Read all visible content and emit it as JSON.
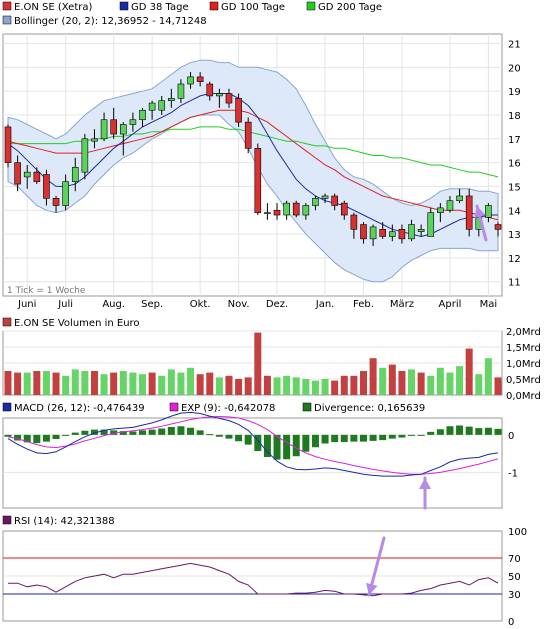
{
  "colors": {
    "candle_up": "#5bd35b",
    "candle_down": "#d93030",
    "bollinger_fill": "#dde8f8",
    "bollinger_line": "#8aa6cc",
    "gd38": "#1a2aa8",
    "gd100": "#e02020",
    "gd200": "#22cc22",
    "macd": "#1a2aa8",
    "exp": "#dd22dd",
    "divergence": "#1e7a1e",
    "rsi": "#661a66",
    "rsi70": "#d81818",
    "rsi30": "#2222aa",
    "arrow": "#b68ae6",
    "volume_up": "#66d466",
    "volume_down": "#c24040"
  },
  "legend_price": [
    {
      "label": "E.ON SE (Xetra)",
      "color": "#d93030"
    },
    {
      "label": "GD 38 Tage",
      "color": "#1a2aa8"
    },
    {
      "label": "GD 100 Tage",
      "color": "#e02020"
    },
    {
      "label": "GD 200 Tage",
      "color": "#22cc22"
    }
  ],
  "legend_bollinger": {
    "label": "Bollinger (20, 2): 12,36952 - 14,71248",
    "color": "#8aa6cc"
  },
  "tick_note": "1 Tick = 1 Woche",
  "legend_volume": {
    "label": "E.ON SE Volumen in Euro",
    "color": "#c24040"
  },
  "legend_macd": [
    {
      "label": "MACD (26, 12): -0,476439",
      "color": "#1a2aa8"
    },
    {
      "label": "EXP (9): -0,642078",
      "color": "#dd22dd"
    },
    {
      "label": "Divergence: 0,165639",
      "color": "#1e7a1e"
    }
  ],
  "legend_rsi": {
    "label": "RSI (14): 42,321388",
    "color": "#661a66"
  },
  "chart_data": [
    {
      "type": "candlestick",
      "title": "E.ON SE (Xetra)",
      "x_labels": [
        "Juni",
        "Juli",
        "Aug.",
        "Sep.",
        "Okt.",
        "Nov.",
        "Dez.",
        "Jan.",
        "Feb.",
        "März",
        "April",
        "Mai"
      ],
      "x_label_week": [
        2,
        6,
        11,
        15,
        20,
        24,
        28,
        33,
        37,
        41,
        46,
        50
      ],
      "y_ticks": [
        11,
        12,
        13,
        14,
        15,
        16,
        17,
        18,
        19,
        20,
        21
      ],
      "ylim": [
        10.4,
        21.4
      ],
      "candles": [
        {
          "o": 17.5,
          "h": 17.6,
          "l": 15.8,
          "c": 16.0
        },
        {
          "o": 16.0,
          "h": 16.3,
          "l": 14.8,
          "c": 15.1
        },
        {
          "o": 15.4,
          "h": 15.9,
          "l": 14.9,
          "c": 15.6
        },
        {
          "o": 15.6,
          "h": 15.8,
          "l": 15.1,
          "c": 15.2
        },
        {
          "o": 15.5,
          "h": 15.7,
          "l": 14.2,
          "c": 14.5
        },
        {
          "o": 14.5,
          "h": 14.6,
          "l": 13.9,
          "c": 14.2
        },
        {
          "o": 14.2,
          "h": 15.5,
          "l": 14.0,
          "c": 15.2
        },
        {
          "o": 15.2,
          "h": 16.2,
          "l": 14.8,
          "c": 15.8
        },
        {
          "o": 15.6,
          "h": 17.2,
          "l": 15.3,
          "c": 17.0
        },
        {
          "o": 16.9,
          "h": 17.4,
          "l": 16.6,
          "c": 17.0
        },
        {
          "o": 17.0,
          "h": 18.1,
          "l": 16.9,
          "c": 17.8
        },
        {
          "o": 17.8,
          "h": 18.3,
          "l": 17.0,
          "c": 17.2
        },
        {
          "o": 17.2,
          "h": 17.7,
          "l": 16.3,
          "c": 17.6
        },
        {
          "o": 17.6,
          "h": 18.1,
          "l": 17.3,
          "c": 17.8
        },
        {
          "o": 17.8,
          "h": 18.3,
          "l": 17.5,
          "c": 18.2
        },
        {
          "o": 18.2,
          "h": 18.6,
          "l": 17.8,
          "c": 18.5
        },
        {
          "o": 18.2,
          "h": 18.8,
          "l": 18.0,
          "c": 18.6
        },
        {
          "o": 18.6,
          "h": 19.1,
          "l": 18.3,
          "c": 18.7
        },
        {
          "o": 18.7,
          "h": 19.5,
          "l": 18.5,
          "c": 19.3
        },
        {
          "o": 19.3,
          "h": 19.8,
          "l": 19.1,
          "c": 19.6
        },
        {
          "o": 19.6,
          "h": 19.8,
          "l": 19.2,
          "c": 19.4
        },
        {
          "o": 19.3,
          "h": 19.4,
          "l": 18.6,
          "c": 18.8
        },
        {
          "o": 18.8,
          "h": 19.1,
          "l": 18.3,
          "c": 18.9
        },
        {
          "o": 18.9,
          "h": 19.1,
          "l": 18.3,
          "c": 18.5
        },
        {
          "o": 18.7,
          "h": 18.9,
          "l": 17.5,
          "c": 17.7
        },
        {
          "o": 17.7,
          "h": 17.9,
          "l": 16.4,
          "c": 16.6
        },
        {
          "o": 16.6,
          "h": 16.8,
          "l": 13.8,
          "c": 13.9
        },
        {
          "o": 13.9,
          "h": 14.3,
          "l": 13.6,
          "c": 13.9
        },
        {
          "o": 14.0,
          "h": 14.3,
          "l": 13.6,
          "c": 13.8
        },
        {
          "o": 13.8,
          "h": 14.4,
          "l": 13.6,
          "c": 14.3
        },
        {
          "o": 14.3,
          "h": 14.4,
          "l": 13.7,
          "c": 13.8
        },
        {
          "o": 13.8,
          "h": 14.3,
          "l": 13.6,
          "c": 14.2
        },
        {
          "o": 14.2,
          "h": 14.6,
          "l": 14.0,
          "c": 14.5
        },
        {
          "o": 14.5,
          "h": 14.7,
          "l": 14.3,
          "c": 14.6
        },
        {
          "o": 14.6,
          "h": 14.7,
          "l": 14.0,
          "c": 14.2
        },
        {
          "o": 14.3,
          "h": 14.4,
          "l": 13.6,
          "c": 13.8
        },
        {
          "o": 13.8,
          "h": 13.9,
          "l": 12.8,
          "c": 13.2
        },
        {
          "o": 13.4,
          "h": 13.5,
          "l": 12.6,
          "c": 12.8
        },
        {
          "o": 12.8,
          "h": 13.4,
          "l": 12.5,
          "c": 13.3
        },
        {
          "o": 13.2,
          "h": 13.5,
          "l": 12.8,
          "c": 12.9
        },
        {
          "o": 12.9,
          "h": 13.4,
          "l": 12.7,
          "c": 13.1
        },
        {
          "o": 13.2,
          "h": 13.4,
          "l": 12.6,
          "c": 12.8
        },
        {
          "o": 12.8,
          "h": 13.6,
          "l": 12.7,
          "c": 13.4
        },
        {
          "o": 13.1,
          "h": 13.4,
          "l": 12.9,
          "c": 13.2
        },
        {
          "o": 12.9,
          "h": 14.1,
          "l": 12.9,
          "c": 13.9
        },
        {
          "o": 13.9,
          "h": 14.3,
          "l": 13.5,
          "c": 14.1
        },
        {
          "o": 14.0,
          "h": 14.6,
          "l": 13.9,
          "c": 14.4
        },
        {
          "o": 14.4,
          "h": 14.9,
          "l": 14.3,
          "c": 14.6
        },
        {
          "o": 14.6,
          "h": 14.9,
          "l": 12.9,
          "c": 13.2
        },
        {
          "o": 13.2,
          "h": 14.0,
          "l": 12.9,
          "c": 13.7
        },
        {
          "o": 13.7,
          "h": 14.3,
          "l": 13.5,
          "c": 14.2
        },
        {
          "o": 13.4,
          "h": 13.5,
          "l": 12.9,
          "c": 13.2
        }
      ],
      "gd38": [
        16.8,
        16.5,
        16.1,
        15.7,
        15.3,
        15.0,
        15.0,
        15.1,
        15.4,
        15.8,
        16.2,
        16.6,
        16.9,
        17.2,
        17.5,
        17.7,
        17.9,
        18.1,
        18.4,
        18.6,
        18.8,
        18.9,
        18.9,
        18.9,
        18.7,
        18.4,
        17.9,
        17.2,
        16.5,
        15.9,
        15.3,
        14.9,
        14.6,
        14.4,
        14.3,
        14.2,
        14.0,
        13.8,
        13.6,
        13.4,
        13.2,
        13.1,
        13.0,
        12.9,
        13.0,
        13.2,
        13.4,
        13.6,
        13.7,
        13.7,
        13.8,
        13.8
      ],
      "gd100": [
        16.9,
        16.8,
        16.7,
        16.6,
        16.5,
        16.4,
        16.4,
        16.4,
        16.4,
        16.5,
        16.6,
        16.7,
        16.8,
        16.9,
        17.0,
        17.1,
        17.3,
        17.5,
        17.7,
        17.9,
        18.0,
        18.1,
        18.2,
        18.2,
        18.2,
        18.1,
        17.9,
        17.7,
        17.4,
        17.1,
        16.8,
        16.5,
        16.2,
        15.9,
        15.7,
        15.4,
        15.2,
        15.0,
        14.8,
        14.6,
        14.5,
        14.4,
        14.3,
        14.2,
        14.1,
        14.0,
        14.0,
        14.0,
        13.9,
        13.8,
        13.7,
        13.6
      ],
      "gd200": [
        16.8,
        16.8,
        16.8,
        16.8,
        16.8,
        16.8,
        16.8,
        16.9,
        16.9,
        17.0,
        17.0,
        17.1,
        17.1,
        17.2,
        17.2,
        17.3,
        17.3,
        17.4,
        17.4,
        17.4,
        17.5,
        17.5,
        17.5,
        17.4,
        17.4,
        17.3,
        17.2,
        17.1,
        17.0,
        16.9,
        16.9,
        16.8,
        16.7,
        16.7,
        16.6,
        16.6,
        16.5,
        16.4,
        16.3,
        16.3,
        16.2,
        16.2,
        16.1,
        16.0,
        15.9,
        15.9,
        15.8,
        15.7,
        15.6,
        15.6,
        15.5,
        15.4
      ],
      "boll_upper": [
        17.9,
        17.8,
        17.6,
        17.4,
        17.2,
        17.0,
        17.2,
        17.6,
        18.0,
        18.3,
        18.6,
        18.7,
        18.8,
        18.9,
        19.0,
        19.1,
        19.4,
        19.7,
        20.0,
        20.2,
        20.3,
        20.3,
        20.2,
        20.2,
        20.0,
        20.0,
        20.0,
        19.9,
        19.8,
        19.5,
        19.1,
        18.4,
        17.6,
        16.9,
        16.2,
        15.7,
        15.4,
        15.3,
        15.1,
        14.8,
        14.5,
        14.3,
        14.2,
        14.3,
        14.5,
        14.8,
        14.9,
        14.9,
        14.9,
        14.8,
        14.8,
        14.7
      ],
      "boll_lower": [
        15.2,
        15.0,
        14.6,
        14.2,
        14.0,
        13.9,
        14.0,
        14.3,
        14.6,
        15.1,
        15.5,
        15.9,
        16.2,
        16.4,
        16.7,
        17.0,
        17.2,
        17.5,
        17.7,
        17.9,
        18.0,
        18.0,
        18.0,
        17.6,
        17.3,
        16.6,
        15.8,
        15.1,
        14.6,
        14.0,
        13.5,
        13.0,
        12.6,
        12.2,
        11.8,
        11.5,
        11.3,
        11.1,
        11.0,
        11.0,
        11.2,
        11.6,
        11.9,
        12.1,
        12.3,
        12.4,
        12.4,
        12.4,
        12.4,
        12.3,
        12.3,
        12.3
      ]
    },
    {
      "type": "bar",
      "title": "E.ON SE Volumen in Euro",
      "y_ticks": [
        "2,0Mrd",
        "1,5Mrd",
        "1,0Mrd",
        "0,5Mrd",
        "0,0Mrd"
      ],
      "ylim": [
        0,
        2.0
      ],
      "values": [
        0.75,
        0.7,
        0.7,
        0.75,
        0.75,
        0.7,
        0.6,
        0.8,
        0.75,
        0.75,
        0.65,
        0.7,
        0.75,
        0.7,
        0.65,
        0.7,
        0.6,
        0.8,
        0.7,
        0.85,
        0.65,
        0.7,
        0.55,
        0.6,
        0.5,
        0.55,
        1.95,
        0.6,
        0.55,
        0.6,
        0.55,
        0.5,
        0.45,
        0.5,
        0.45,
        0.6,
        0.6,
        0.75,
        1.15,
        0.85,
        0.95,
        0.75,
        0.8,
        0.7,
        0.6,
        0.85,
        0.7,
        0.9,
        1.45,
        0.65,
        1.15,
        0.55
      ],
      "up": [
        false,
        false,
        true,
        false,
        true,
        false,
        true,
        true,
        true,
        false,
        true,
        false,
        true,
        true,
        true,
        false,
        true,
        true,
        true,
        true,
        false,
        false,
        true,
        false,
        false,
        false,
        false,
        false,
        true,
        true,
        true,
        true,
        true,
        true,
        false,
        false,
        false,
        false,
        false,
        true,
        false,
        false,
        true,
        false,
        true,
        true,
        true,
        true,
        false,
        true,
        true,
        false
      ]
    },
    {
      "type": "line",
      "title": "MACD (26, 12)",
      "y_ticks": [
        0,
        -1
      ],
      "ylim": [
        -1.95,
        0.45
      ],
      "macd": [
        -0.1,
        -0.25,
        -0.38,
        -0.48,
        -0.5,
        -0.45,
        -0.32,
        -0.18,
        -0.05,
        0.05,
        0.12,
        0.16,
        0.18,
        0.2,
        0.26,
        0.32,
        0.4,
        0.5,
        0.58,
        0.6,
        0.57,
        0.5,
        0.44,
        0.38,
        0.28,
        0.12,
        -0.15,
        -0.45,
        -0.7,
        -0.85,
        -0.92,
        -0.93,
        -0.91,
        -0.88,
        -0.9,
        -0.95,
        -1.0,
        -1.05,
        -1.08,
        -1.1,
        -1.1,
        -1.1,
        -1.07,
        -1.05,
        -0.95,
        -0.85,
        -0.72,
        -0.65,
        -0.62,
        -0.6,
        -0.52,
        -0.48
      ],
      "exp": [
        -0.05,
        -0.1,
        -0.18,
        -0.26,
        -0.32,
        -0.34,
        -0.3,
        -0.24,
        -0.16,
        -0.09,
        -0.02,
        0.04,
        0.08,
        0.11,
        0.14,
        0.18,
        0.23,
        0.29,
        0.35,
        0.41,
        0.45,
        0.48,
        0.49,
        0.48,
        0.45,
        0.38,
        0.28,
        0.14,
        -0.04,
        -0.2,
        -0.35,
        -0.48,
        -0.58,
        -0.65,
        -0.71,
        -0.76,
        -0.82,
        -0.87,
        -0.92,
        -0.96,
        -1.0,
        -1.03,
        -1.05,
        -1.05,
        -1.03,
        -1.0,
        -0.95,
        -0.9,
        -0.84,
        -0.78,
        -0.71,
        -0.64
      ],
      "divergence": [
        -0.05,
        -0.15,
        -0.2,
        -0.22,
        -0.18,
        -0.11,
        -0.02,
        0.06,
        0.11,
        0.14,
        0.14,
        0.12,
        0.1,
        0.09,
        0.12,
        0.14,
        0.17,
        0.21,
        0.23,
        0.19,
        0.12,
        0.02,
        -0.05,
        -0.1,
        -0.17,
        -0.26,
        -0.43,
        -0.59,
        -0.66,
        -0.65,
        -0.57,
        -0.45,
        -0.33,
        -0.23,
        -0.19,
        -0.19,
        -0.18,
        -0.18,
        -0.16,
        -0.14,
        -0.1,
        -0.07,
        -0.02,
        0.0,
        0.08,
        0.15,
        0.23,
        0.25,
        0.22,
        0.18,
        0.19,
        0.16
      ]
    },
    {
      "type": "line",
      "title": "RSI (14)",
      "y_ticks": [
        100,
        70,
        50,
        30,
        0
      ],
      "ylim": [
        0,
        100
      ],
      "reference_lines": [
        70,
        30
      ],
      "values": [
        42,
        42,
        38,
        40,
        38,
        32,
        38,
        44,
        48,
        50,
        52,
        48,
        52,
        52,
        54,
        56,
        58,
        60,
        62,
        64,
        62,
        60,
        56,
        52,
        44,
        40,
        30,
        30,
        30,
        30,
        31,
        31,
        32,
        34,
        33,
        30,
        30,
        29,
        28,
        30,
        30,
        30,
        31,
        34,
        36,
        40,
        42,
        44,
        40,
        46,
        48,
        42
      ]
    }
  ]
}
